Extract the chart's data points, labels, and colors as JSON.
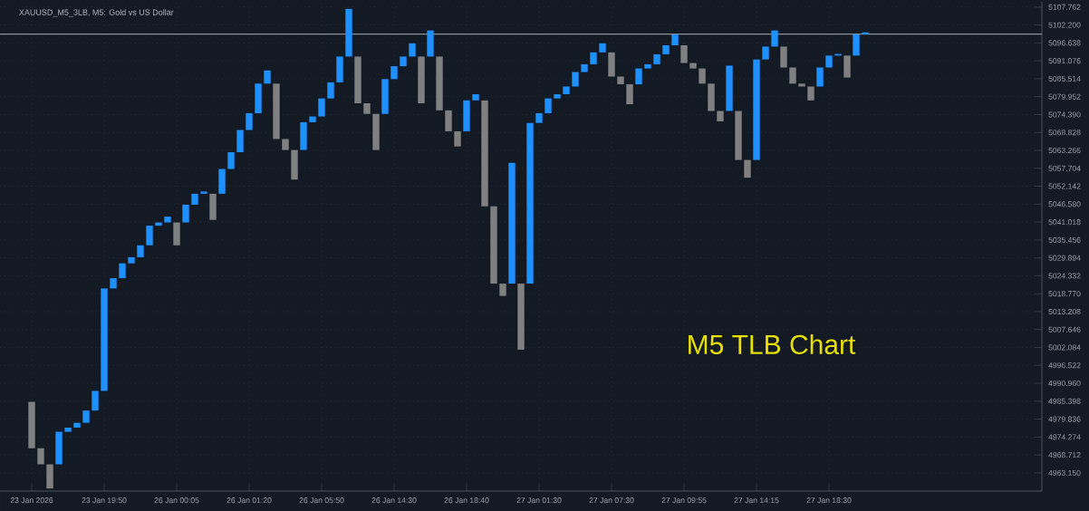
{
  "chart_data": {
    "type": "bar",
    "title": "XAUUSD_M5_3LB, M5:  Gold vs US Dollar",
    "annotations": [
      "M5 TLB Chart"
    ],
    "categories": [
      null,
      null,
      null,
      "23 Jan 2026",
      null,
      null,
      null,
      null,
      null,
      null,
      null,
      "23 Jan 19:50",
      null,
      null,
      null,
      null,
      null,
      null,
      null,
      "26 Jan 00:05",
      null,
      null,
      null,
      null,
      null,
      null,
      null,
      "26 Jan 01:20",
      null,
      null,
      null,
      null,
      null,
      null,
      null,
      "26 Jan 05:50",
      null,
      null,
      null,
      null,
      null,
      null,
      null,
      "26 Jan 14:30",
      null,
      null,
      null,
      null,
      null,
      null,
      null,
      "26 Jan 18:40",
      null,
      null,
      null,
      null,
      null,
      null,
      null,
      "27 Jan 01:30",
      null,
      null,
      null,
      null,
      null,
      null,
      null,
      "27 Jan 07:30",
      null,
      null,
      null,
      null,
      null,
      null,
      null,
      "27 Jan 09:55",
      null,
      null,
      null,
      null,
      null,
      null,
      null,
      "27 Jan 14:15",
      null,
      null,
      null,
      null,
      null,
      null,
      null,
      "27 Jan 18:30",
      null,
      null,
      null,
      null,
      null,
      null,
      null,
      null,
      null,
      null,
      null,
      null,
      null,
      null,
      null,
      null,
      null,
      null,
      null,
      null,
      null,
      null,
      null
    ],
    "base": [
      null,
      null,
      null,
      4970.8,
      4965.8,
      4958.3,
      4965.8,
      4975.9,
      4977.2,
      4978.7,
      4982.5,
      4988.6,
      5020.4,
      5023.6,
      5028.2,
      5030.1,
      5033.8,
      5039.9,
      5040.9,
      5033.8,
      5040.9,
      5046.4,
      5049.8,
      5041.7,
      5049.8,
      5057.5,
      5062.7,
      5069.6,
      5074.8,
      5084.0,
      5066.8,
      5063.4,
      5054.2,
      5063.4,
      5072.0,
      5073.8,
      5079.4,
      5084.4,
      5092.4,
      5077.9,
      5074.6,
      5063.4,
      5074.6,
      5085.4,
      5089.4,
      5092.4,
      5077.9,
      5092.4,
      5075.7,
      5069.2,
      5064.5,
      5069.2,
      5078.8,
      5045.9,
      5021.9,
      5018.1,
      5021.9,
      5001.4,
      5021.9,
      5071.8,
      5074.8,
      5079.4,
      5080.7,
      5083.1,
      5087.6,
      5090.0,
      5093.7,
      5086.2,
      5083.8,
      5077.6,
      5083.8,
      5088.7,
      5090.0,
      5093.1,
      5095.9,
      5090.4,
      5088.7,
      5084.0,
      5075.5,
      5072.3,
      5075.5,
      5060.3,
      5054.8,
      5060.3,
      5091.5,
      5095.5,
      5089.0,
      5084.0,
      5083.1,
      5078.8,
      5083.1,
      5089.0,
      5092.7,
      5085.9,
      5092.7,
      5099.3,
      null,
      null,
      null,
      null,
      null,
      null,
      null,
      null,
      null,
      null,
      null,
      null,
      null,
      null,
      null,
      null,
      null,
      null,
      null
    ],
    "values": [
      null,
      null,
      null,
      14.4,
      5.0,
      7.5,
      10.1,
      1.3,
      1.5,
      3.8,
      6.1,
      31.8,
      3.2,
      4.6,
      1.9,
      3.7,
      6.1,
      1.0,
      1.8,
      7.1,
      5.5,
      3.4,
      0.7,
      8.1,
      7.7,
      5.2,
      6.9,
      5.2,
      9.2,
      4.1,
      17.2,
      3.4,
      9.2,
      8.6,
      1.8,
      5.6,
      5.0,
      8.0,
      14.8,
      14.5,
      3.3,
      11.2,
      10.8,
      4.0,
      3.0,
      4.1,
      14.5,
      8.1,
      16.7,
      6.5,
      4.7,
      9.6,
      1.9,
      32.9,
      24.0,
      3.8,
      37.5,
      20.5,
      49.9,
      3.0,
      4.6,
      1.3,
      2.4,
      4.5,
      2.4,
      3.7,
      2.8,
      7.5,
      2.4,
      6.2,
      4.9,
      1.3,
      3.1,
      2.8,
      3.4,
      5.5,
      1.7,
      4.7,
      8.5,
      3.2,
      14.1,
      15.2,
      5.5,
      31.2,
      4.0,
      5.0,
      6.5,
      5.0,
      0.9,
      4.3,
      5.9,
      3.7,
      0.5,
      6.8,
      6.6,
      0.6,
      null,
      null,
      null,
      null,
      null,
      null,
      null,
      null,
      null,
      null,
      null,
      null,
      null,
      null,
      null,
      null,
      null,
      null,
      null
    ],
    "colors": [
      null,
      null,
      null,
      "#808080",
      "#808080",
      "#808080",
      "#1e90ff",
      "#1e90ff",
      "#1e90ff",
      "#1e90ff",
      "#1e90ff",
      "#1e90ff",
      "#1e90ff",
      "#1e90ff",
      "#1e90ff",
      "#1e90ff",
      "#1e90ff",
      "#1e90ff",
      "#1e90ff",
      "#808080",
      "#1e90ff",
      "#1e90ff",
      "#1e90ff",
      "#808080",
      "#1e90ff",
      "#1e90ff",
      "#1e90ff",
      "#1e90ff",
      "#1e90ff",
      "#1e90ff",
      "#808080",
      "#808080",
      "#808080",
      "#1e90ff",
      "#1e90ff",
      "#1e90ff",
      "#1e90ff",
      "#1e90ff",
      "#1e90ff",
      "#808080",
      "#808080",
      "#808080",
      "#1e90ff",
      "#1e90ff",
      "#1e90ff",
      "#1e90ff",
      "#808080",
      "#1e90ff",
      "#808080",
      "#808080",
      "#808080",
      "#1e90ff",
      "#1e90ff",
      "#808080",
      "#808080",
      "#808080",
      "#1e90ff",
      "#808080",
      "#1e90ff",
      "#1e90ff",
      "#1e90ff",
      "#1e90ff",
      "#1e90ff",
      "#1e90ff",
      "#1e90ff",
      "#1e90ff",
      "#1e90ff",
      "#808080",
      "#808080",
      "#808080",
      "#1e90ff",
      "#1e90ff",
      "#1e90ff",
      "#1e90ff",
      "#1e90ff",
      "#808080",
      "#808080",
      "#808080",
      "#808080",
      "#808080",
      "#1e90ff",
      "#808080",
      "#808080",
      "#1e90ff",
      "#1e90ff",
      "#1e90ff",
      "#808080",
      "#808080",
      "#808080",
      "#808080",
      "#1e90ff",
      "#1e90ff",
      "#1e90ff",
      "#808080",
      "#1e90ff",
      "#1e90ff",
      null,
      null,
      null,
      null,
      null,
      null,
      null,
      null,
      null,
      null,
      null,
      null,
      null,
      null,
      null,
      null,
      null,
      null,
      null
    ],
    "ylim": [
      4957.5,
      5109.4
    ],
    "yticks": [
      {
        "value": 4963.15,
        "label": "4963.150"
      },
      {
        "value": 4968.712,
        "label": "4968.712"
      },
      {
        "value": 4974.274,
        "label": "4974.274"
      },
      {
        "value": 4979.836,
        "label": "4979.836"
      },
      {
        "value": 4985.398,
        "label": "4985.398"
      },
      {
        "value": 4990.96,
        "label": "4990.960"
      },
      {
        "value": 4996.522,
        "label": "4996.522"
      },
      {
        "value": 5002.084,
        "label": "5002.084"
      },
      {
        "value": 5007.646,
        "label": "5007.646"
      },
      {
        "value": 5013.208,
        "label": "5013.208"
      },
      {
        "value": 5018.77,
        "label": "5018.770"
      },
      {
        "value": 5024.332,
        "label": "5024.332"
      },
      {
        "value": 5029.894,
        "label": "5029.894"
      },
      {
        "value": 5035.456,
        "label": "5035.456"
      },
      {
        "value": 5041.018,
        "label": "5041.018"
      },
      {
        "value": 5046.58,
        "label": "5046.580"
      },
      {
        "value": 5052.142,
        "label": "5052.142"
      },
      {
        "value": 5057.704,
        "label": "5057.704"
      },
      {
        "value": 5063.266,
        "label": "5063.266"
      },
      {
        "value": 5068.828,
        "label": "5068.828"
      },
      {
        "value": 5074.39,
        "label": "5074.390"
      },
      {
        "value": 5079.952,
        "label": "5079.952"
      },
      {
        "value": 5085.514,
        "label": "5085.514"
      },
      {
        "value": 5091.076,
        "label": "5091.076"
      },
      {
        "value": 5096.638,
        "label": "5096.638"
      },
      {
        "value": 5102.2,
        "label": "5102.200"
      },
      {
        "value": 5107.762,
        "label": "5107.762"
      }
    ],
    "ref_lines": [
      {
        "axis": "y",
        "value": 5099.4,
        "color": "#8a8f98"
      }
    ],
    "grid": true
  }
}
